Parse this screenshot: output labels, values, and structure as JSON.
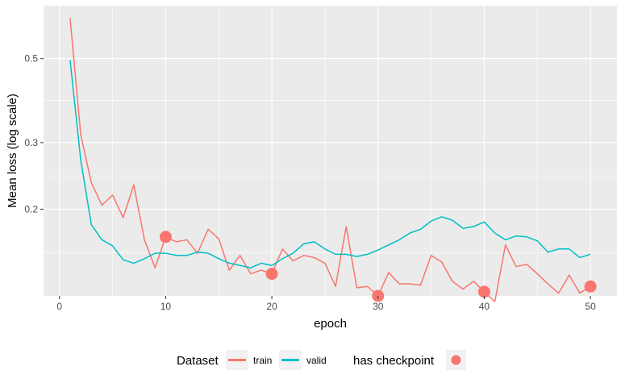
{
  "chart_data": {
    "type": "line",
    "xlabel": "epoch",
    "ylabel": "Mean loss (log scale)",
    "y_scale": "log",
    "xlim": [
      -1.5,
      52.5
    ],
    "ylim": [
      0.118,
      0.69
    ],
    "x_ticks": [
      0,
      10,
      20,
      30,
      40,
      50
    ],
    "y_ticks": [
      0.2,
      0.3,
      0.5
    ],
    "grid": true,
    "legend_position": "bottom",
    "colors": {
      "train": "#F8766D",
      "valid": "#00BFC4",
      "checkpoint": "#F8766D",
      "panel": "#EBEBEB",
      "grid": "#FFFFFF"
    },
    "x": [
      1,
      2,
      3,
      4,
      5,
      6,
      7,
      8,
      9,
      10,
      11,
      12,
      13,
      14,
      15,
      16,
      17,
      18,
      19,
      20,
      21,
      22,
      23,
      24,
      25,
      26,
      27,
      28,
      29,
      30,
      31,
      32,
      33,
      34,
      35,
      36,
      37,
      38,
      39,
      40,
      41,
      42,
      43,
      44,
      45,
      46,
      47,
      48,
      49,
      50
    ],
    "series": [
      {
        "name": "train",
        "values": [
          0.64,
          0.315,
          0.235,
          0.205,
          0.218,
          0.19,
          0.232,
          0.166,
          0.14,
          0.169,
          0.164,
          0.166,
          0.153,
          0.177,
          0.167,
          0.138,
          0.151,
          0.135,
          0.138,
          0.135,
          0.157,
          0.146,
          0.151,
          0.149,
          0.144,
          0.125,
          0.18,
          0.124,
          0.125,
          0.118,
          0.136,
          0.127,
          0.127,
          0.126,
          0.151,
          0.145,
          0.129,
          0.123,
          0.129,
          0.121,
          0.114,
          0.161,
          0.141,
          0.143,
          0.135,
          0.127,
          0.12,
          0.134,
          0.12,
          0.125
        ]
      },
      {
        "name": "valid",
        "values": [
          0.495,
          0.27,
          0.182,
          0.166,
          0.16,
          0.147,
          0.144,
          0.148,
          0.153,
          0.153,
          0.151,
          0.151,
          0.154,
          0.153,
          0.148,
          0.144,
          0.142,
          0.14,
          0.144,
          0.142,
          0.148,
          0.153,
          0.162,
          0.164,
          0.157,
          0.152,
          0.152,
          0.15,
          0.152,
          0.156,
          0.161,
          0.166,
          0.173,
          0.177,
          0.186,
          0.191,
          0.187,
          0.178,
          0.18,
          0.185,
          0.173,
          0.166,
          0.17,
          0.169,
          0.165,
          0.154,
          0.157,
          0.157,
          0.149,
          0.152
        ]
      }
    ],
    "checkpoints": {
      "name": "has checkpoint",
      "x": [
        10,
        20,
        30,
        40,
        50
      ],
      "values": [
        0.169,
        0.135,
        0.118,
        0.121,
        0.125
      ]
    },
    "legend": {
      "dataset_title": "Dataset",
      "entries": [
        "train",
        "valid"
      ],
      "checkpoint_title": "has checkpoint"
    }
  }
}
